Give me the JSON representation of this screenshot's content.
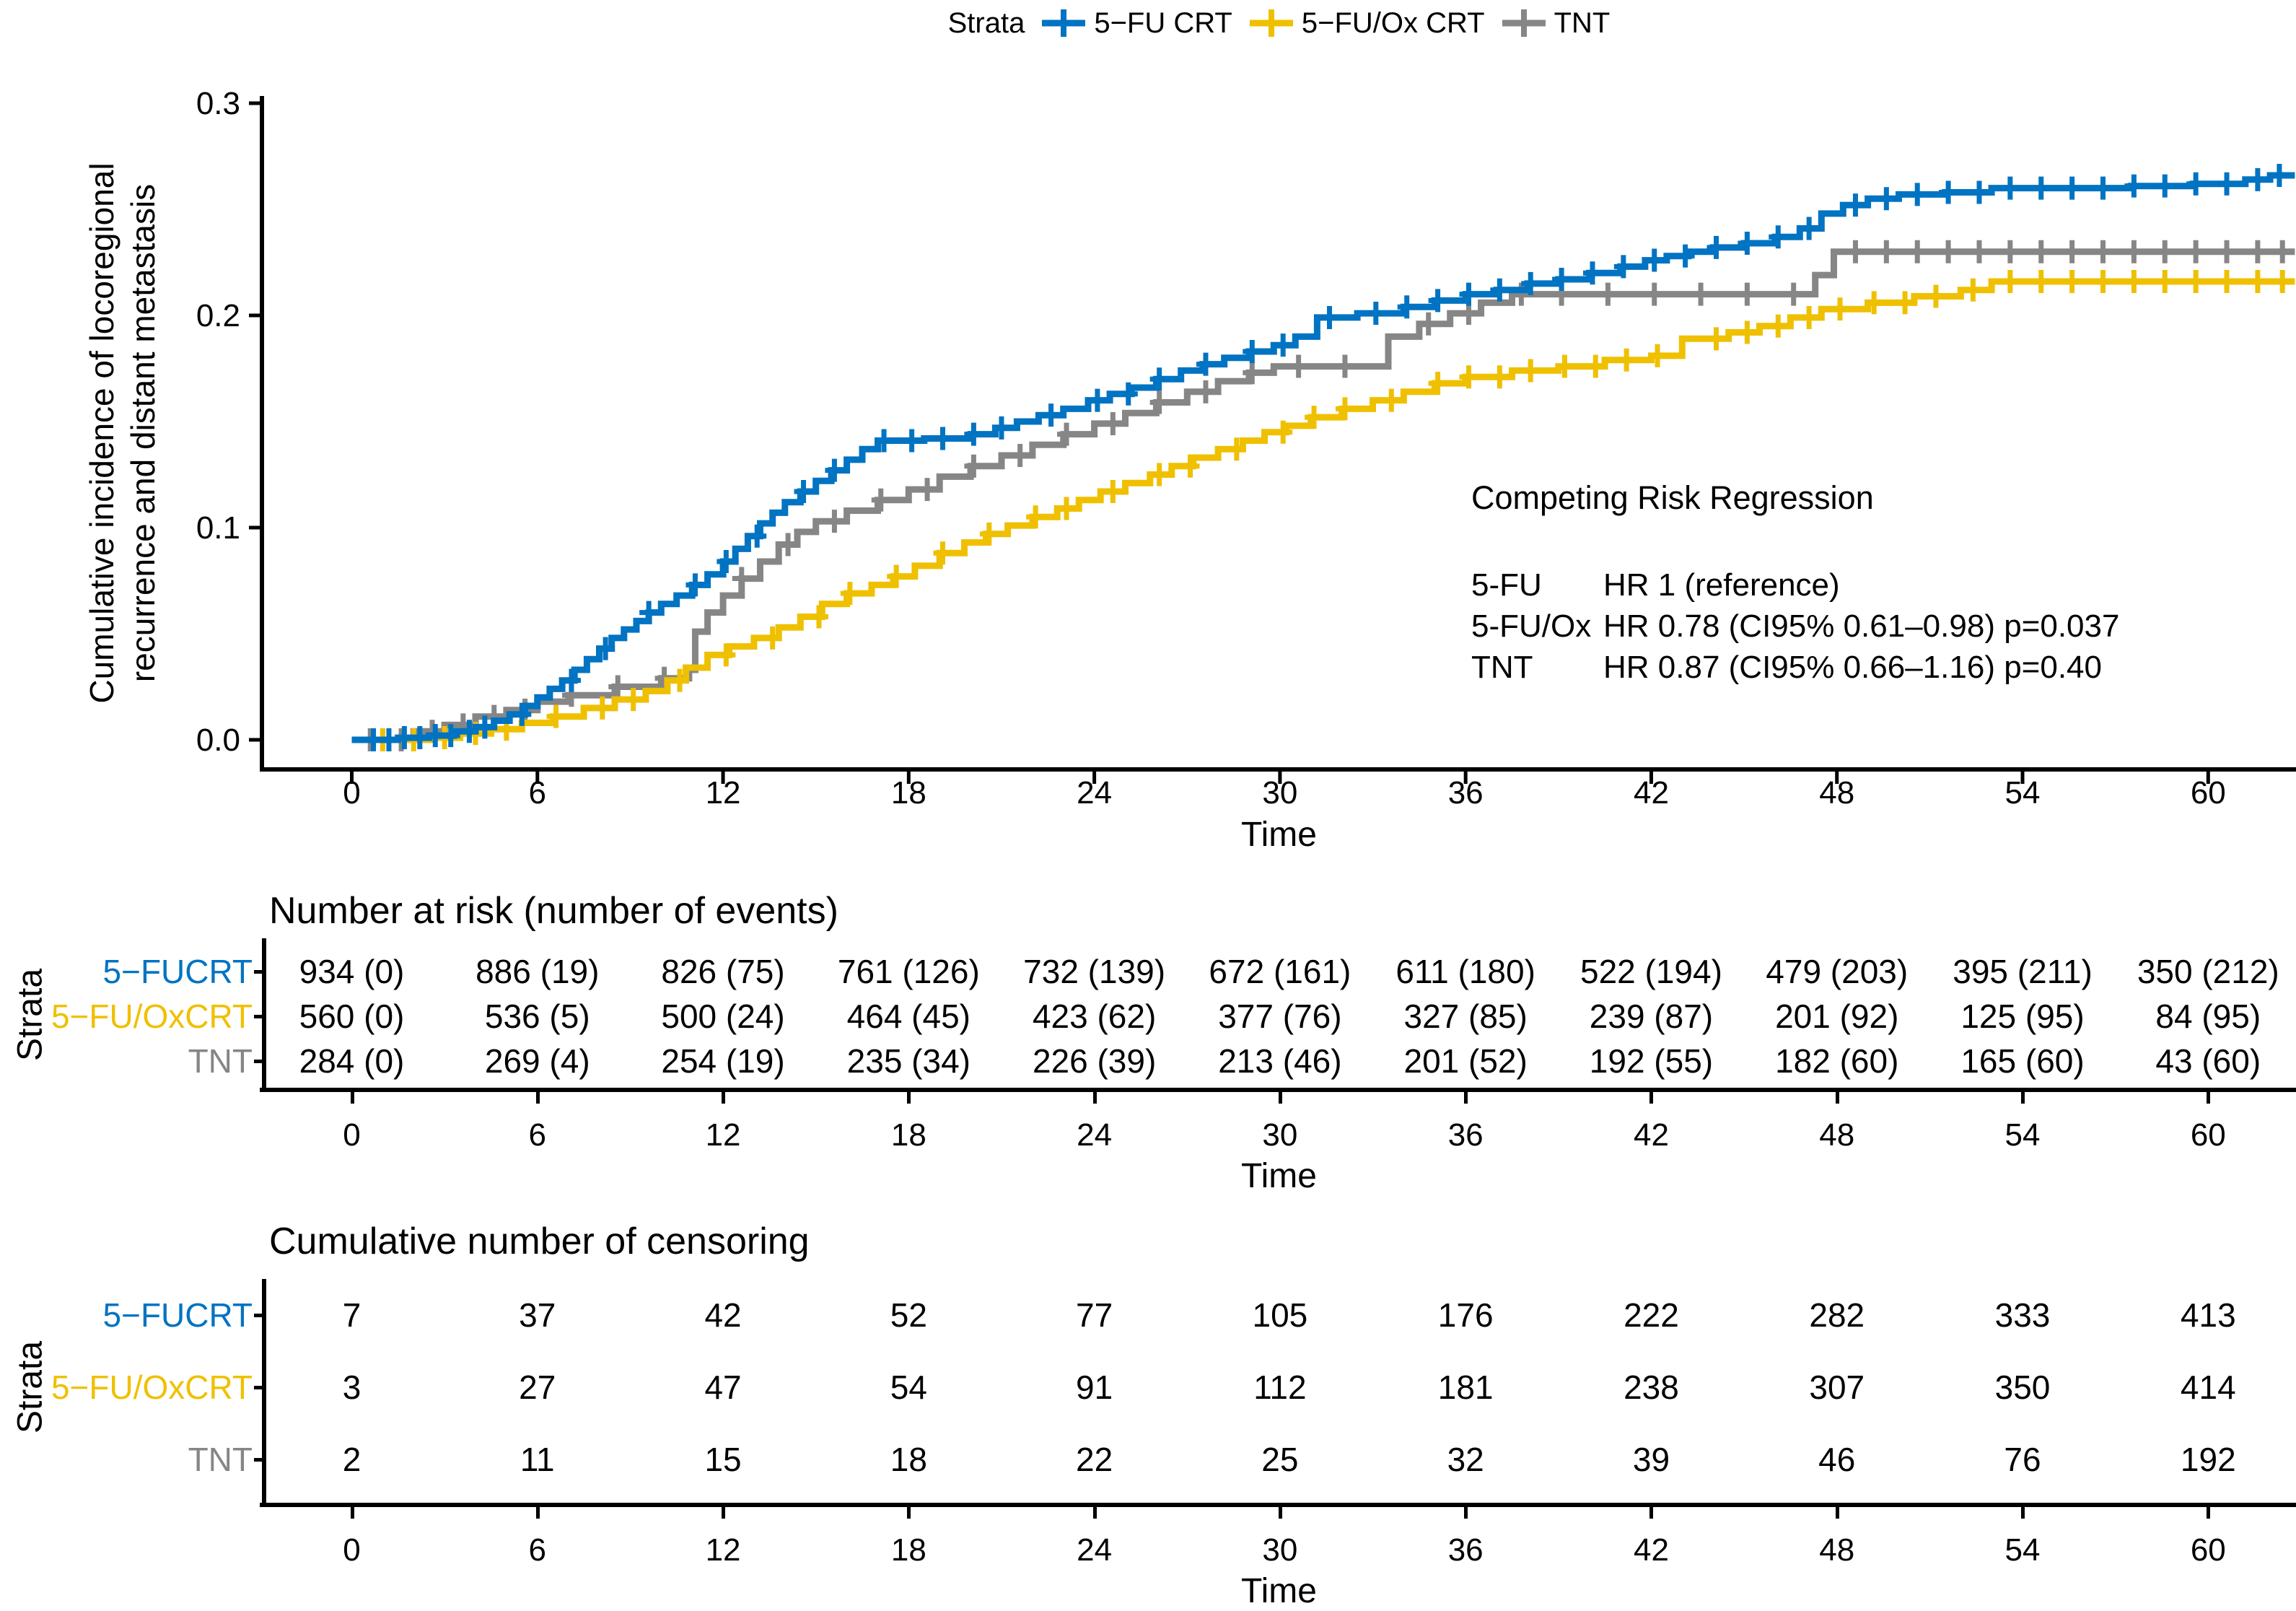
{
  "colors": {
    "fu": "#0073C2",
    "fuox": "#EFC000",
    "tnt": "#868686",
    "axis": "#000000"
  },
  "legend": {
    "title": "Strata",
    "items": [
      {
        "label": "5−FU CRT",
        "color": "#0073C2"
      },
      {
        "label": "5−FU/Ox CRT",
        "color": "#EFC000"
      },
      {
        "label": "TNT",
        "color": "#868686"
      }
    ]
  },
  "chart_data": {
    "type": "line",
    "subtype": "step-cumulative-incidence",
    "title": "",
    "xlabel": "Time",
    "ylabel_lines": [
      "Cumulative incidence of locoregional",
      "recurrence and distant metastasis"
    ],
    "xticks": [
      0,
      6,
      12,
      18,
      24,
      30,
      36,
      42,
      48,
      54,
      60
    ],
    "ytick_labels": [
      "0.0",
      "0.1",
      "0.2",
      "0.3"
    ],
    "ytick_values": [
      0,
      0.1,
      0.2,
      0.3
    ],
    "xlim": [
      -2.9,
      62.8
    ],
    "ylim": [
      0,
      0.3
    ],
    "grid": false,
    "legend_position": "top",
    "series": [
      {
        "name": "TNT",
        "color": "#868686",
        "steps": [
          [
            0,
            0
          ],
          [
            2,
            0.004
          ],
          [
            3,
            0.007
          ],
          [
            4,
            0.011
          ],
          [
            5,
            0.014
          ],
          [
            6,
            0.018
          ],
          [
            7,
            0.021
          ],
          [
            8.5,
            0.025
          ],
          [
            10,
            0.029
          ],
          [
            10.9,
            0.033
          ],
          [
            11.1,
            0.051
          ],
          [
            11.5,
            0.06
          ],
          [
            12,
            0.068
          ],
          [
            12.6,
            0.076
          ],
          [
            13.2,
            0.084
          ],
          [
            13.8,
            0.092
          ],
          [
            14.4,
            0.098
          ],
          [
            15,
            0.103
          ],
          [
            16,
            0.108
          ],
          [
            17,
            0.113
          ],
          [
            18,
            0.118
          ],
          [
            19,
            0.124
          ],
          [
            20,
            0.129
          ],
          [
            21,
            0.134
          ],
          [
            22,
            0.139
          ],
          [
            23,
            0.144
          ],
          [
            24,
            0.149
          ],
          [
            25,
            0.154
          ],
          [
            26,
            0.159
          ],
          [
            27,
            0.164
          ],
          [
            28,
            0.169
          ],
          [
            29,
            0.173
          ],
          [
            29.8,
            0.176
          ],
          [
            33.5,
            0.19
          ],
          [
            34.5,
            0.196
          ],
          [
            35.5,
            0.201
          ],
          [
            36.5,
            0.206
          ],
          [
            37.5,
            0.21
          ],
          [
            47.3,
            0.219
          ],
          [
            47.9,
            0.23
          ]
        ],
        "censors": [
          0.6,
          1.6,
          2.6,
          3.6,
          4.6,
          5.6,
          7.1,
          8.6,
          10.1,
          12.6,
          14.1,
          15.6,
          17.1,
          18.6,
          20.1,
          21.6,
          23.1,
          24.6,
          26.1,
          27.6,
          29.1,
          30.6,
          32.1,
          34.8,
          36.1,
          37.8,
          39.1,
          40.6,
          42.1,
          43.6,
          45.1,
          46.6,
          48.6,
          49.6,
          50.6,
          51.6,
          52.6,
          53.6,
          54.6,
          55.6,
          56.6,
          57.6,
          58.6,
          59.6,
          60.6,
          61.6,
          62.4
        ]
      },
      {
        "name": "5−FU/Ox CRT",
        "color": "#EFC000",
        "steps": [
          [
            0,
            0
          ],
          [
            2.5,
            0.001
          ],
          [
            3.5,
            0.003
          ],
          [
            4.5,
            0.005
          ],
          [
            5.5,
            0.008
          ],
          [
            6.5,
            0.011
          ],
          [
            7.5,
            0.015
          ],
          [
            8.5,
            0.019
          ],
          [
            9.5,
            0.023
          ],
          [
            10.2,
            0.028
          ],
          [
            10.8,
            0.034
          ],
          [
            11.5,
            0.04
          ],
          [
            12.2,
            0.044
          ],
          [
            13,
            0.048
          ],
          [
            13.8,
            0.053
          ],
          [
            14.5,
            0.058
          ],
          [
            15.2,
            0.064
          ],
          [
            16,
            0.069
          ],
          [
            16.8,
            0.073
          ],
          [
            17.5,
            0.077
          ],
          [
            18.2,
            0.082
          ],
          [
            19,
            0.088
          ],
          [
            19.8,
            0.093
          ],
          [
            20.5,
            0.097
          ],
          [
            21.2,
            0.101
          ],
          [
            22,
            0.105
          ],
          [
            22.8,
            0.109
          ],
          [
            23.5,
            0.113
          ],
          [
            24.2,
            0.117
          ],
          [
            25,
            0.121
          ],
          [
            25.8,
            0.125
          ],
          [
            26.5,
            0.129
          ],
          [
            27.2,
            0.133
          ],
          [
            28,
            0.137
          ],
          [
            28.8,
            0.141
          ],
          [
            29.5,
            0.145
          ],
          [
            30.2,
            0.148
          ],
          [
            31,
            0.152
          ],
          [
            32,
            0.156
          ],
          [
            33,
            0.16
          ],
          [
            34,
            0.164
          ],
          [
            35,
            0.168
          ],
          [
            36,
            0.171
          ],
          [
            37.5,
            0.174
          ],
          [
            39,
            0.176
          ],
          [
            40.5,
            0.179
          ],
          [
            42,
            0.181
          ],
          [
            43,
            0.189
          ],
          [
            44.5,
            0.192
          ],
          [
            45.5,
            0.195
          ],
          [
            46.5,
            0.199
          ],
          [
            47.5,
            0.203
          ],
          [
            49,
            0.206
          ],
          [
            50.5,
            0.209
          ],
          [
            52,
            0.212
          ],
          [
            53,
            0.216
          ]
        ],
        "censors": [
          1,
          2,
          3,
          4,
          5,
          6.6,
          8.1,
          9.1,
          10.6,
          12.1,
          13.6,
          15.1,
          16.1,
          17.6,
          19.1,
          20.6,
          22.1,
          23.1,
          24.6,
          26.1,
          27.1,
          28.6,
          30.1,
          31.1,
          32.1,
          33.6,
          35.1,
          36.1,
          37.1,
          38.1,
          39.2,
          40.2,
          41.2,
          42.2,
          44.1,
          45.1,
          46.1,
          47.1,
          48.1,
          49.2,
          50.2,
          51.2,
          52.4,
          53.6,
          54.6,
          55.6,
          56.6,
          57.6,
          58.6,
          59.6,
          60.6,
          61.6,
          62.4
        ]
      },
      {
        "name": "5−FU CRT",
        "color": "#0073C2",
        "steps": [
          [
            0,
            0
          ],
          [
            1.5,
            0.001
          ],
          [
            2.5,
            0.002
          ],
          [
            3.3,
            0.004
          ],
          [
            4,
            0.006
          ],
          [
            4.6,
            0.009
          ],
          [
            5.1,
            0.012
          ],
          [
            5.6,
            0.016
          ],
          [
            6,
            0.02
          ],
          [
            6.4,
            0.024
          ],
          [
            6.8,
            0.028
          ],
          [
            7.2,
            0.033
          ],
          [
            7.6,
            0.038
          ],
          [
            8,
            0.043
          ],
          [
            8.4,
            0.048
          ],
          [
            8.8,
            0.052
          ],
          [
            9.2,
            0.056
          ],
          [
            9.6,
            0.06
          ],
          [
            10,
            0.064
          ],
          [
            10.5,
            0.068
          ],
          [
            11,
            0.073
          ],
          [
            11.5,
            0.078
          ],
          [
            12,
            0.084
          ],
          [
            12.4,
            0.09
          ],
          [
            12.8,
            0.096
          ],
          [
            13.2,
            0.102
          ],
          [
            13.6,
            0.107
          ],
          [
            14,
            0.112
          ],
          [
            14.5,
            0.117
          ],
          [
            15,
            0.122
          ],
          [
            15.5,
            0.127
          ],
          [
            16,
            0.132
          ],
          [
            16.5,
            0.137
          ],
          [
            17,
            0.141
          ],
          [
            18.5,
            0.142
          ],
          [
            20,
            0.144
          ],
          [
            20.8,
            0.147
          ],
          [
            21.5,
            0.15
          ],
          [
            22.2,
            0.153
          ],
          [
            23,
            0.156
          ],
          [
            23.8,
            0.16
          ],
          [
            24.5,
            0.163
          ],
          [
            25.2,
            0.166
          ],
          [
            26,
            0.17
          ],
          [
            26.8,
            0.174
          ],
          [
            27.5,
            0.177
          ],
          [
            28.2,
            0.18
          ],
          [
            29,
            0.183
          ],
          [
            29.8,
            0.186
          ],
          [
            30.5,
            0.19
          ],
          [
            31.2,
            0.199
          ],
          [
            32.5,
            0.201
          ],
          [
            34,
            0.204
          ],
          [
            35,
            0.207
          ],
          [
            36,
            0.21
          ],
          [
            37,
            0.212
          ],
          [
            38,
            0.215
          ],
          [
            39,
            0.217
          ],
          [
            40,
            0.22
          ],
          [
            41,
            0.223
          ],
          [
            41.8,
            0.226
          ],
          [
            42.5,
            0.228
          ],
          [
            43.2,
            0.23
          ],
          [
            44,
            0.232
          ],
          [
            45,
            0.234
          ],
          [
            46,
            0.237
          ],
          [
            46.8,
            0.241
          ],
          [
            47.5,
            0.248
          ],
          [
            48.2,
            0.252
          ],
          [
            49,
            0.255
          ],
          [
            50,
            0.257
          ],
          [
            51.5,
            0.258
          ],
          [
            53,
            0.26
          ],
          [
            57.5,
            0.261
          ],
          [
            59.5,
            0.262
          ],
          [
            61.2,
            0.264
          ],
          [
            62,
            0.266
          ]
        ],
        "censors": [
          0.7,
          1.2,
          1.7,
          2.2,
          2.7,
          3.2,
          3.8,
          4.3,
          5.5,
          7.1,
          8.2,
          9.6,
          11.1,
          12.1,
          13.1,
          14.6,
          15.6,
          17.2,
          18.1,
          19.1,
          20.1,
          21,
          22.6,
          24.1,
          25.1,
          26.1,
          27.6,
          29.1,
          30.1,
          31.6,
          33.1,
          34.1,
          35.1,
          36.1,
          37.1,
          38.1,
          39.1,
          40.1,
          41.1,
          42.1,
          43.1,
          44.1,
          45.1,
          46.1,
          47.1,
          48.6,
          49.6,
          50.6,
          51.6,
          52.6,
          53.6,
          54.6,
          55.6,
          56.6,
          57.6,
          58.6,
          59.6,
          60.6,
          61.6,
          62.3
        ]
      }
    ],
    "annotation": {
      "title": "Competing Risk Regression",
      "rows": [
        [
          "5-FU",
          "HR 1 (reference)"
        ],
        [
          "5-FU/Ox",
          "HR 0.78 (CI95% 0.61–0.98) p=0.037"
        ],
        [
          "TNT",
          "HR 0.87 (CI95% 0.66–1.16) p=0.40"
        ]
      ]
    }
  },
  "risk_table": {
    "title": "Number at risk (number of events)",
    "axis_label": "Strata",
    "xlabel": "Time",
    "columns": [
      0,
      6,
      12,
      18,
      24,
      30,
      36,
      42,
      48,
      54,
      60
    ],
    "rows": [
      {
        "label": "5−FUCRT",
        "color": "#0073C2",
        "values": [
          "934 (0)",
          "886 (19)",
          "826 (75)",
          "761 (126)",
          "732 (139)",
          "672 (161)",
          "611 (180)",
          "522 (194)",
          "479 (203)",
          "395 (211)",
          "350 (212)"
        ]
      },
      {
        "label": "5−FU/OxCRT",
        "color": "#EFC000",
        "values": [
          "560 (0)",
          "536 (5)",
          "500 (24)",
          "464 (45)",
          "423 (62)",
          "377 (76)",
          "327 (85)",
          "239 (87)",
          "201 (92)",
          "125 (95)",
          "84 (95)"
        ]
      },
      {
        "label": "TNT",
        "color": "#868686",
        "values": [
          "284 (0)",
          "269 (4)",
          "254 (19)",
          "235 (34)",
          "226 (39)",
          "213 (46)",
          "201 (52)",
          "192 (55)",
          "182 (60)",
          "165 (60)",
          "43 (60)"
        ]
      }
    ]
  },
  "censor_table": {
    "title": "Cumulative number of censoring",
    "axis_label": "Strata",
    "xlabel": "Time",
    "columns": [
      0,
      6,
      12,
      18,
      24,
      30,
      36,
      42,
      48,
      54,
      60
    ],
    "rows": [
      {
        "label": "5−FUCRT",
        "color": "#0073C2",
        "values": [
          "7",
          "37",
          "42",
          "52",
          "77",
          "105",
          "176",
          "222",
          "282",
          "333",
          "413"
        ]
      },
      {
        "label": "5−FU/OxCRT",
        "color": "#EFC000",
        "values": [
          "3",
          "27",
          "47",
          "54",
          "91",
          "112",
          "181",
          "238",
          "307",
          "350",
          "414"
        ]
      },
      {
        "label": "TNT",
        "color": "#868686",
        "values": [
          "2",
          "11",
          "15",
          "18",
          "22",
          "25",
          "32",
          "39",
          "46",
          "76",
          "192"
        ]
      }
    ]
  }
}
